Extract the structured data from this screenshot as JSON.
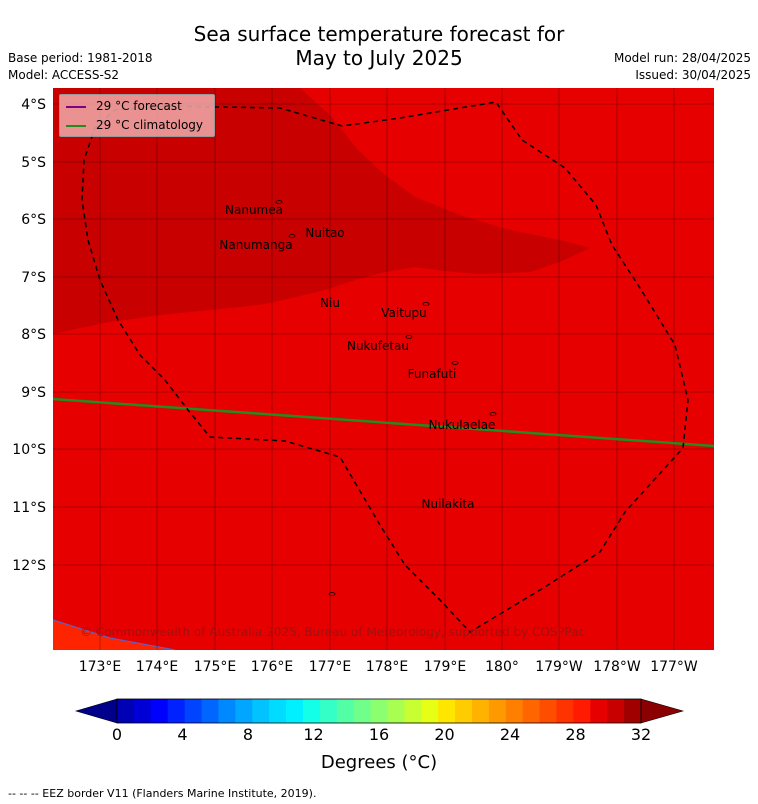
{
  "header": {
    "title_line1": "Sea surface temperature forecast for",
    "title_line2": "May to July 2025",
    "base_period": "Base period: 1981-2018",
    "model": "Model: ACCESS-S2",
    "model_run": "Model run: 28/04/2025",
    "issued": "Issued: 30/04/2025"
  },
  "legend": {
    "forecast_label": "29 °C  forecast",
    "forecast_color": "#800080",
    "climatology_label": "29 °C  climatology",
    "climatology_color": "#228b22"
  },
  "map": {
    "lon_labels": [
      "173°E",
      "174°E",
      "175°E",
      "176°E",
      "177°E",
      "178°E",
      "179°E",
      "180°",
      "179°W",
      "178°W",
      "177°W"
    ],
    "lat_labels": [
      "4°S",
      "5°S",
      "6°S",
      "7°S",
      "8°S",
      "9°S",
      "10°S",
      "11°S",
      "12°S"
    ],
    "colors": {
      "sst_28_29": "#e60000",
      "sst_29_30": "#c80000",
      "sst_27_28": "#ff2400"
    },
    "places": [
      {
        "name": "Nanumea"
      },
      {
        "name": "Nuitao"
      },
      {
        "name": "Nanumanga"
      },
      {
        "name": "Niu"
      },
      {
        "name": "Vaitupu"
      },
      {
        "name": "Nukufetau"
      },
      {
        "name": "Funafuti"
      },
      {
        "name": "Nukulaelae"
      },
      {
        "name": "Nuilakita"
      }
    ],
    "copyright": "© Commonwealth of Australia 2025, Bureau of Meteorology, supported by COSPPac"
  },
  "colorbar": {
    "tick_labels": [
      "0",
      "4",
      "8",
      "12",
      "16",
      "20",
      "24",
      "28",
      "32"
    ],
    "title": "Degrees (°C)",
    "colors": [
      "#00008b",
      "#0000b4",
      "#0000d6",
      "#0000ff",
      "#0022ff",
      "#0044ff",
      "#0066ff",
      "#0088ff",
      "#00a6ff",
      "#00c3ff",
      "#00dcff",
      "#00f0ff",
      "#14ffe8",
      "#33ffc7",
      "#52ffa6",
      "#70ff8a",
      "#8cff70",
      "#a8ff52",
      "#c8ff33",
      "#e6ff14",
      "#ffe600",
      "#ffcc00",
      "#ffb300",
      "#ff9900",
      "#ff7f00",
      "#ff6600",
      "#ff4d00",
      "#ff3300",
      "#ff1a00",
      "#e60000",
      "#c80000",
      "#a00000",
      "#8b0000"
    ]
  },
  "footnote": "--  --  -- EEZ border V11 (Flanders Marine Institute, 2019)."
}
